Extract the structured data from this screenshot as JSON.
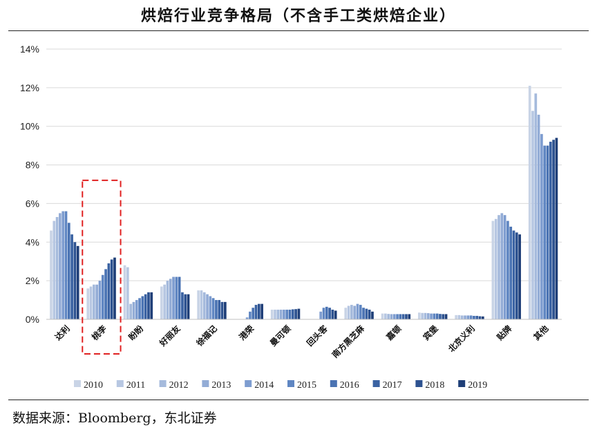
{
  "title": "烘焙行业竞争格局（不含手工类烘焙企业）",
  "source": "数据来源：Bloomberg，东北证券",
  "chart_data": {
    "type": "bar",
    "title": "烘焙行业竞争格局（不含手工类烘焙企业）",
    "xlabel": "",
    "ylabel": "",
    "ylim": [
      0,
      14
    ],
    "y_ticks": [
      "0%",
      "2%",
      "4%",
      "6%",
      "8%",
      "10%",
      "12%",
      "14%"
    ],
    "grid": true,
    "legend_position": "bottom",
    "highlight_category": "桃李",
    "categories": [
      "达利",
      "桃李",
      "盼盼",
      "好丽友",
      "徐福记",
      "港荣",
      "曼可顿",
      "回头客",
      "南方黑芝麻",
      "嘉顿",
      "宾堡",
      "北京义利",
      "贴牌",
      "其他"
    ],
    "series": [
      {
        "name": "2010",
        "color": "#c9d4e6",
        "values": [
          4.6,
          1.6,
          2.8,
          1.7,
          1.5,
          0.0,
          0.5,
          0.0,
          0.6,
          0.3,
          0.35,
          0.22,
          5.1,
          12.1
        ]
      },
      {
        "name": "2011",
        "color": "#b7c7e2",
        "values": [
          5.1,
          1.7,
          2.7,
          1.8,
          1.5,
          0.0,
          0.5,
          0.0,
          0.7,
          0.3,
          0.33,
          0.22,
          5.2,
          10.8
        ]
      },
      {
        "name": "2012",
        "color": "#a5badc",
        "values": [
          5.3,
          1.8,
          0.8,
          2.0,
          1.4,
          0.0,
          0.5,
          0.0,
          0.75,
          0.28,
          0.33,
          0.2,
          5.4,
          11.7
        ]
      },
      {
        "name": "2013",
        "color": "#93acd6",
        "values": [
          5.5,
          1.8,
          0.9,
          2.1,
          1.3,
          0.0,
          0.5,
          0.0,
          0.7,
          0.27,
          0.32,
          0.2,
          5.5,
          10.6
        ]
      },
      {
        "name": "2014",
        "color": "#7e9dd0",
        "values": [
          5.6,
          2.0,
          1.0,
          2.2,
          1.2,
          0.1,
          0.5,
          0.4,
          0.8,
          0.27,
          0.3,
          0.2,
          5.4,
          9.6
        ]
      },
      {
        "name": "2015",
        "color": "#5f86c2",
        "values": [
          5.6,
          2.3,
          1.1,
          2.2,
          1.1,
          0.4,
          0.5,
          0.6,
          0.75,
          0.27,
          0.3,
          0.2,
          5.1,
          9.0
        ]
      },
      {
        "name": "2016",
        "color": "#4a73b3",
        "values": [
          5.0,
          2.6,
          1.2,
          2.2,
          1.0,
          0.6,
          0.5,
          0.65,
          0.6,
          0.27,
          0.3,
          0.18,
          4.8,
          9.0
        ]
      },
      {
        "name": "2017",
        "color": "#3a62a2",
        "values": [
          4.4,
          2.9,
          1.3,
          1.4,
          1.0,
          0.75,
          0.52,
          0.6,
          0.55,
          0.27,
          0.28,
          0.18,
          4.6,
          9.2
        ]
      },
      {
        "name": "2018",
        "color": "#2d5290",
        "values": [
          4.0,
          3.1,
          1.4,
          1.3,
          0.9,
          0.8,
          0.53,
          0.5,
          0.5,
          0.27,
          0.27,
          0.16,
          4.5,
          9.3
        ]
      },
      {
        "name": "2019",
        "color": "#1f3f78",
        "values": [
          3.8,
          3.2,
          1.4,
          1.3,
          0.9,
          0.8,
          0.55,
          0.45,
          0.4,
          0.27,
          0.27,
          0.15,
          4.4,
          9.4
        ]
      }
    ]
  }
}
